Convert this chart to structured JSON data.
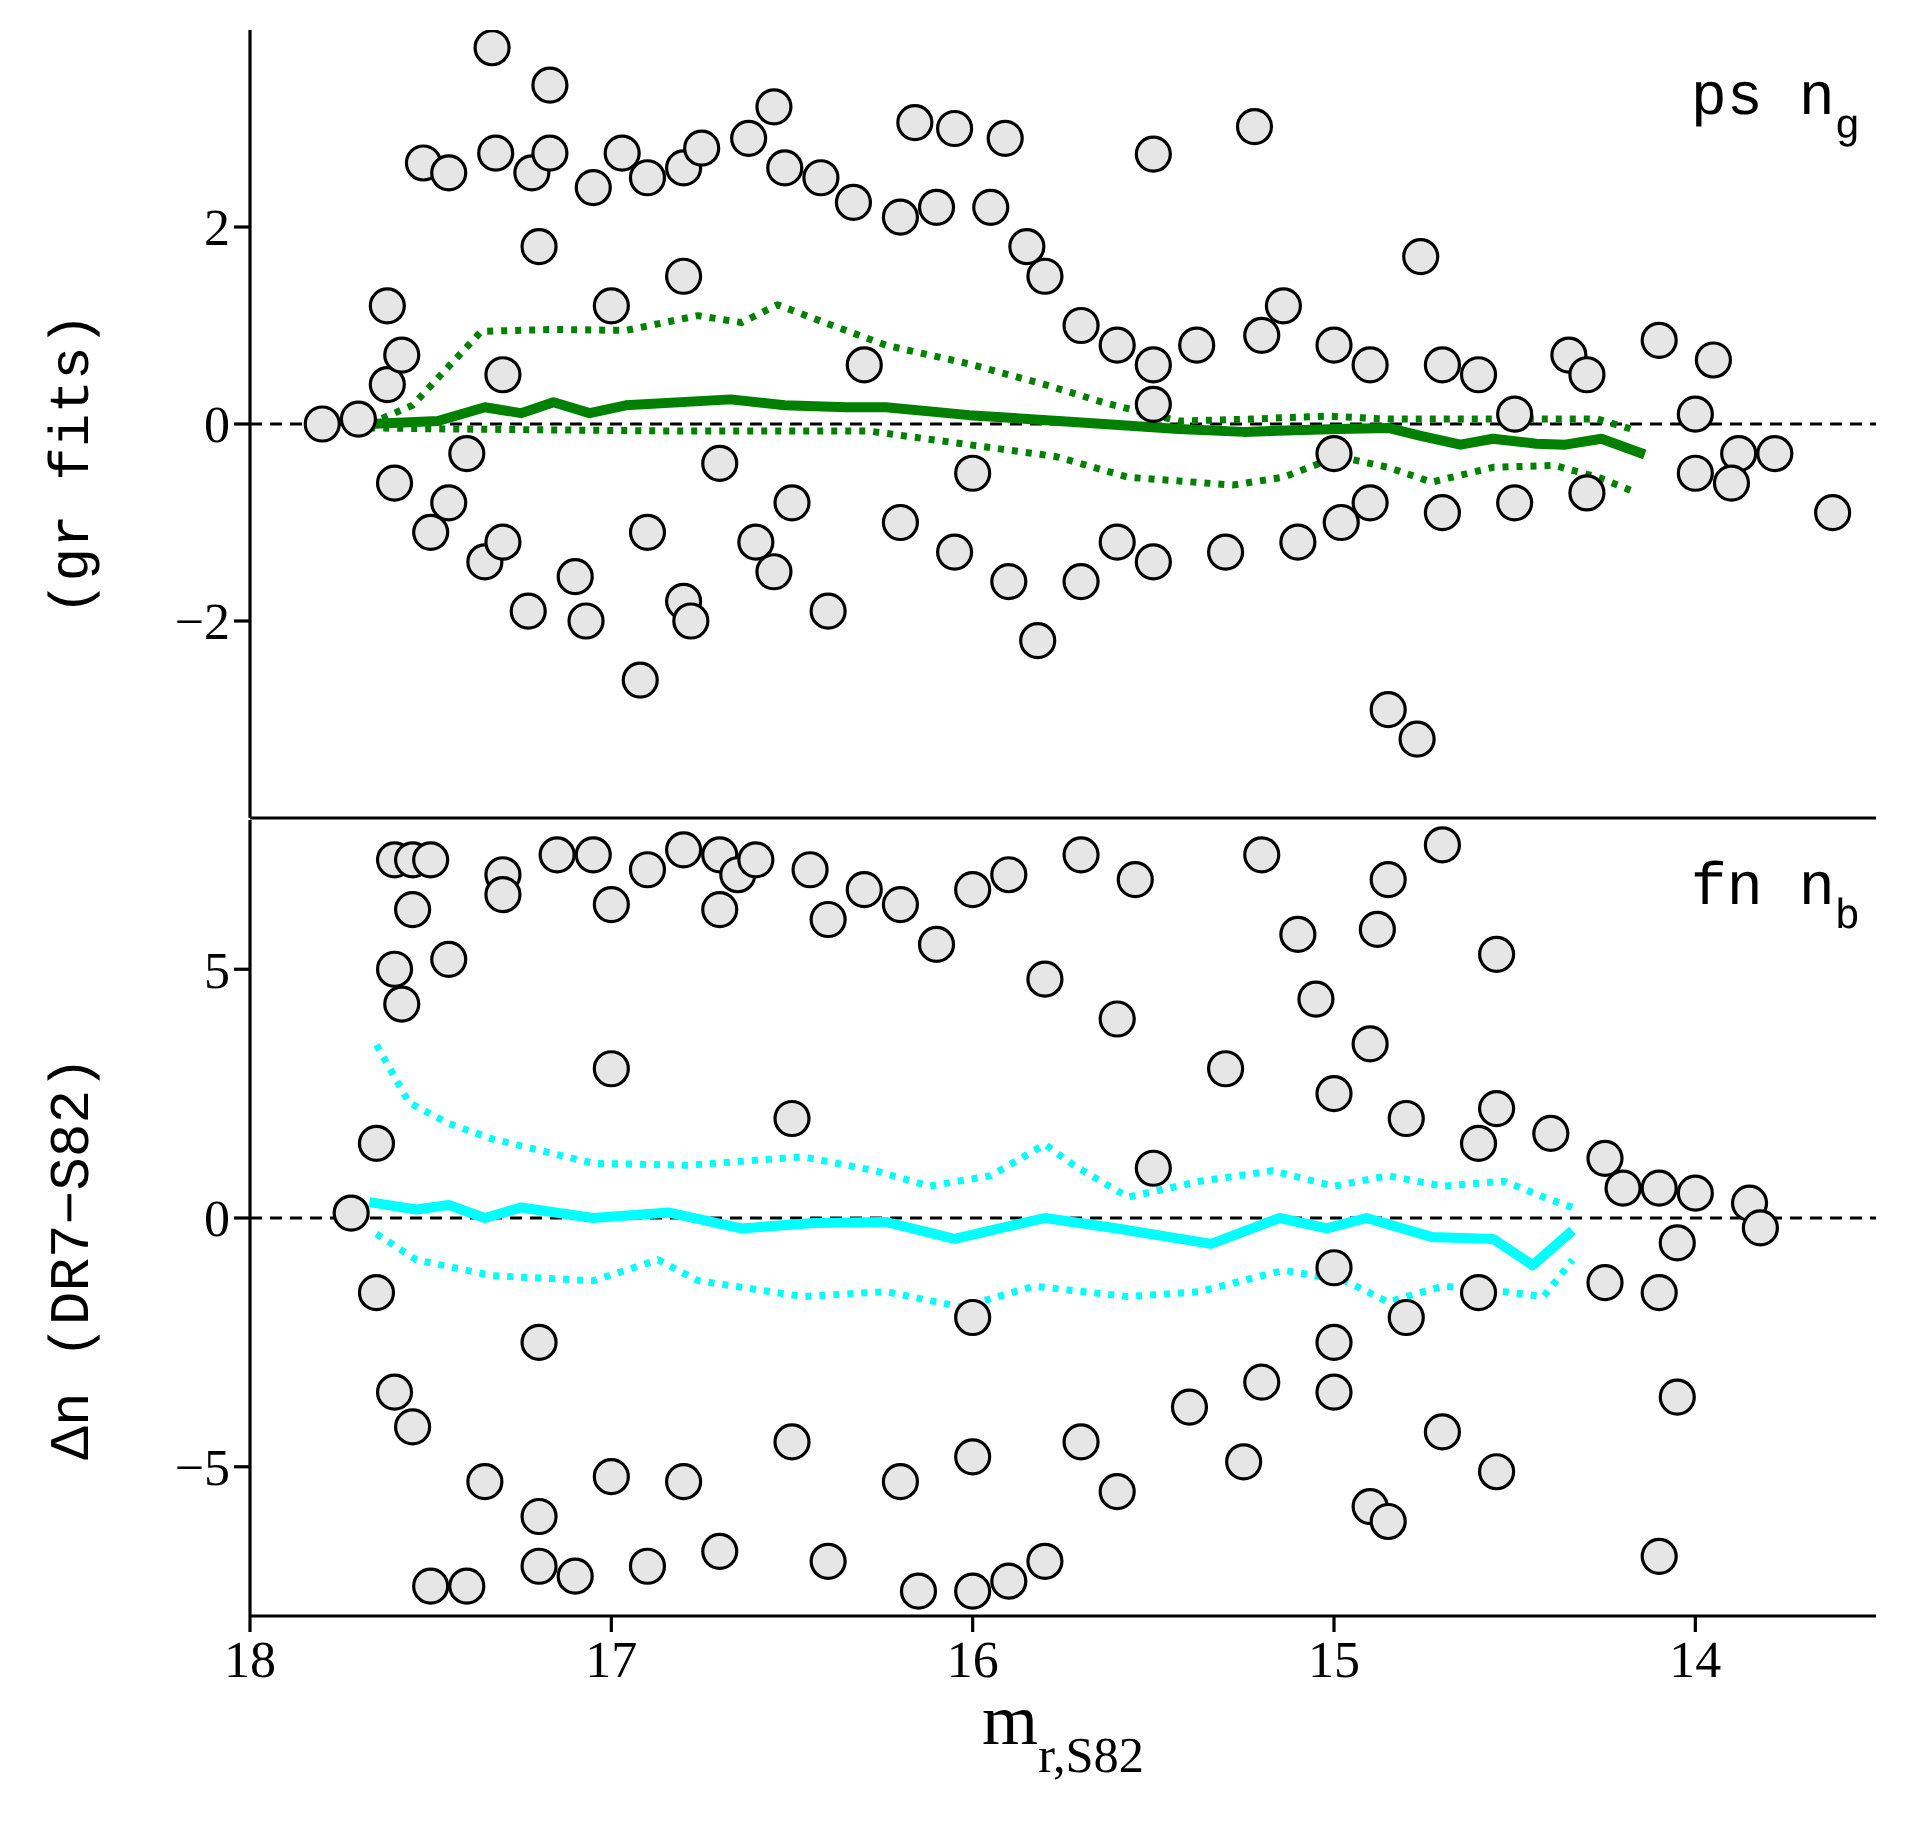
{
  "chart_data": [
    {
      "type": "scatter",
      "ylabel": "(gr fits)",
      "annotations": [
        "ps n$_{g}$"
      ],
      "xlim": [
        18,
        13.5
      ],
      "xticks": [
        18,
        17,
        16,
        15,
        14
      ],
      "ylim": [
        -4,
        4
      ],
      "yticks": [
        -2,
        0,
        2
      ],
      "tick_labels": "y",
      "ref_lines": [
        {
          "axis": "y",
          "value": 0,
          "color": "#000000",
          "line_style": "dashed"
        }
      ],
      "series": [
        {
          "marker": "circle",
          "color": "#e6e6e6",
          "x": [
            17.52,
            17.45,
            17.33,
            17.32,
            17.22,
            17.17,
            17.17,
            17.05,
            16.97,
            16.9,
            16.8,
            16.75,
            16.62,
            16.55,
            16.52,
            16.42,
            16.33,
            16.2,
            16.16,
            16.1,
            16.05,
            15.95,
            15.91,
            15.85,
            15.8,
            15.7,
            15.6,
            15.5,
            15.5,
            15.38,
            15.22,
            15.2,
            15.14,
            15.0,
            14.9,
            14.76,
            14.7,
            14.6,
            14.35,
            14.3,
            14.1,
            13.95,
            14.0,
            13.88,
            13.78,
            13.62,
            17.8,
            17.7,
            17.62,
            17.62,
            17.58,
            17.6,
            17.5,
            17.45,
            17.35,
            17.3,
            17.23,
            17.1,
            17.07,
            16.9,
            16.92,
            16.8,
            16.78,
            16.6,
            16.55,
            16.4,
            16.2,
            16.05,
            15.9,
            15.82,
            15.7,
            15.6,
            15.5,
            15.3,
            15.1,
            14.98,
            14.9,
            14.85,
            14.77,
            14.7,
            14.5,
            14.3,
            14.0,
            13.9,
            17.3,
            17.0,
            16.7,
            16.3,
            16.0,
            15.5,
            15.0,
            14.5,
            17.2,
            16.8,
            16.5,
            17.4
          ],
          "values": [
            2.65,
            2.55,
            3.82,
            2.75,
            2.55,
            3.44,
            2.75,
            2.4,
            2.75,
            2.5,
            2.6,
            2.8,
            2.9,
            3.22,
            2.6,
            2.5,
            2.25,
            2.1,
            3.06,
            2.2,
            3.0,
            2.2,
            2.9,
            1.8,
            1.5,
            1.0,
            0.8,
            2.74,
            0.6,
            0.8,
            3.02,
            0.9,
            1.2,
            0.8,
            0.6,
            1.7,
            0.6,
            0.5,
            0.7,
            0.5,
            0.85,
            0.65,
            0.1,
            -0.3,
            -0.3,
            -0.9,
            0.0,
            0.05,
            0.4,
            1.2,
            0.7,
            -0.6,
            -1.1,
            -0.8,
            -1.4,
            -1.2,
            -1.9,
            -1.55,
            -2.0,
            -1.1,
            -2.6,
            -1.8,
            -2.0,
            -1.2,
            -1.5,
            -1.9,
            -1.0,
            -1.3,
            -1.6,
            -2.2,
            -1.6,
            -1.2,
            -1.4,
            -1.3,
            -1.2,
            -1.0,
            -0.8,
            -2.9,
            -3.2,
            -0.9,
            -0.8,
            -0.7,
            -0.5,
            -0.6,
            0.5,
            1.2,
            -0.4,
            0.6,
            -0.5,
            0.2,
            -0.3,
            0.1,
            1.8,
            1.5,
            -0.8,
            -0.3
          ]
        },
        {
          "type": "line",
          "color": "#008000",
          "line_style": "solid",
          "x": [
            17.67,
            17.48,
            17.35,
            17.25,
            17.16,
            17.06,
            16.96,
            16.67,
            16.52,
            16.35,
            16.24,
            16.01,
            15.72,
            15.43,
            15.25,
            14.99,
            14.85,
            14.76,
            14.65,
            14.56,
            14.44,
            14.36,
            14.26,
            14.14
          ],
          "values": [
            0.0,
            0.03,
            0.17,
            0.11,
            0.22,
            0.11,
            0.19,
            0.25,
            0.19,
            0.17,
            0.17,
            0.09,
            0.02,
            -0.05,
            -0.08,
            -0.05,
            -0.04,
            -0.12,
            -0.21,
            -0.15,
            -0.2,
            -0.21,
            -0.15,
            -0.31
          ]
        },
        {
          "type": "line",
          "color": "#008000",
          "line_style": "dotted",
          "x": [
            17.67,
            17.55,
            17.36,
            17.16,
            16.96,
            16.76,
            16.64,
            16.54,
            16.41,
            16.24,
            16.01,
            15.8,
            15.63,
            15.43,
            15.23,
            15.02,
            14.85,
            14.56,
            14.27,
            14.16
          ],
          "values": [
            0.0,
            0.19,
            0.94,
            0.96,
            0.95,
            1.1,
            1.03,
            1.21,
            1.03,
            0.8,
            0.61,
            0.4,
            0.21,
            0.03,
            0.05,
            0.08,
            0.05,
            0.05,
            0.05,
            -0.07
          ]
        },
        {
          "type": "line",
          "color": "#008000",
          "line_style": "dotted",
          "x": [
            17.67,
            17.45,
            16.87,
            16.29,
            16.01,
            15.77,
            15.57,
            15.28,
            15.14,
            14.99,
            14.85,
            14.73,
            14.56,
            14.39,
            14.27,
            14.16
          ],
          "values": [
            -0.04,
            -0.05,
            -0.07,
            -0.07,
            -0.21,
            -0.33,
            -0.54,
            -0.62,
            -0.54,
            -0.33,
            -0.44,
            -0.59,
            -0.44,
            -0.42,
            -0.54,
            -0.7
          ]
        }
      ]
    },
    {
      "type": "scatter",
      "xlabel": "m$_{r,S82}$",
      "ylabel": "Δn (DR7−S82)",
      "annotations": [
        "fn n$_{b}$"
      ],
      "xlim": [
        18,
        13.5
      ],
      "xticks": [
        18,
        17,
        16,
        15,
        14
      ],
      "ylim": [
        -8,
        8
      ],
      "yticks": [
        -5,
        0,
        5
      ],
      "ref_lines": [
        {
          "axis": "y",
          "value": 0,
          "color": "#000000",
          "line_style": "dashed"
        }
      ],
      "series": [
        {
          "marker": "circle",
          "color": "#e6e6e6",
          "x": [
            17.6,
            17.55,
            17.5,
            17.3,
            17.15,
            17.05,
            16.9,
            16.8,
            16.7,
            16.65,
            16.6,
            16.45,
            16.3,
            16.2,
            16.0,
            15.9,
            15.7,
            15.55,
            15.2,
            14.85,
            14.7,
            15.1,
            14.88,
            14.55,
            15.05,
            14.9,
            14.55,
            14.4,
            14.25,
            14.1,
            14.0,
            13.85,
            13.82,
            14.05,
            14.1,
            14.05,
            14.1,
            14.55,
            14.7,
            14.9,
            14.85,
            15.0,
            15.25,
            15.6,
            15.8,
            15.9,
            16.0,
            16.15,
            16.4,
            16.7,
            16.9,
            17.1,
            17.2,
            17.4,
            17.5,
            17.55,
            17.6,
            17.65,
            17.72,
            17.65,
            17.58,
            17.6,
            17.55,
            17.45,
            17.35,
            17.2,
            17.0,
            16.8,
            16.5,
            16.2,
            16.0,
            15.7,
            15.4,
            15.2,
            15.0,
            14.8,
            14.6,
            14.25,
            14.2,
            14.6,
            14.8,
            15.0,
            15.3,
            15.6,
            15.8,
            16.1,
            16.4,
            16.7,
            17.0,
            17.3,
            17.0,
            16.5,
            16.0,
            17.2,
            15.5,
            15.0
          ],
          "values": [
            7.2,
            7.2,
            7.2,
            6.9,
            7.3,
            7.3,
            7.0,
            7.4,
            7.3,
            6.9,
            7.2,
            7.0,
            6.6,
            6.3,
            6.6,
            6.9,
            7.3,
            6.8,
            7.3,
            6.8,
            7.5,
            5.7,
            5.8,
            5.3,
            4.4,
            3.5,
            2.2,
            1.7,
            1.2,
            0.6,
            0.5,
            0.3,
            -0.2,
            -0.5,
            -1.5,
            -3.6,
            -6.8,
            -5.1,
            -4.3,
            -5.8,
            -6.1,
            -3.5,
            -4.9,
            -5.5,
            -6.9,
            -7.3,
            -7.5,
            -7.5,
            -6.9,
            -6.7,
            -7.0,
            -7.2,
            -7.0,
            -7.4,
            -7.4,
            -4.2,
            -3.5,
            -1.5,
            0.1,
            1.5,
            4.3,
            5.0,
            6.2,
            5.2,
            -5.3,
            -6.0,
            -5.2,
            -5.3,
            -4.5,
            -5.3,
            -4.8,
            -4.5,
            -3.8,
            -3.3,
            -2.5,
            -2.0,
            -1.5,
            -1.3,
            0.6,
            1.5,
            2.0,
            2.5,
            3.0,
            4.0,
            4.8,
            5.5,
            6.0,
            6.2,
            6.3,
            6.5,
            3.0,
            2.0,
            -2.0,
            -2.5,
            1.0,
            -1.0
          ]
        },
        {
          "type": "line",
          "color": "#00ffff",
          "line_style": "solid",
          "x": [
            17.67,
            17.54,
            17.45,
            17.35,
            17.25,
            17.05,
            16.84,
            16.64,
            16.44,
            16.24,
            16.05,
            15.8,
            15.6,
            15.34,
            15.15,
            15.02,
            14.91,
            14.73,
            14.56,
            14.45,
            14.34
          ],
          "values": [
            0.32,
            0.17,
            0.26,
            0.0,
            0.21,
            0.0,
            0.11,
            -0.21,
            -0.1,
            -0.08,
            -0.42,
            0.0,
            -0.21,
            -0.52,
            0.0,
            -0.21,
            0.0,
            -0.38,
            -0.42,
            -0.95,
            -0.25
          ]
        },
        {
          "type": "line",
          "color": "#00ffff",
          "line_style": "dotted",
          "x": [
            17.65,
            17.56,
            17.45,
            17.33,
            17.05,
            16.79,
            16.47,
            16.27,
            16.12,
            15.95,
            15.8,
            15.72,
            15.57,
            15.37,
            15.17,
            15.0,
            14.85,
            14.7,
            14.53,
            14.42,
            14.34
          ],
          "values": [
            3.48,
            2.32,
            1.9,
            1.59,
            1.1,
            1.06,
            1.23,
            0.95,
            0.64,
            0.85,
            1.48,
            1.06,
            0.42,
            0.74,
            0.95,
            0.64,
            0.85,
            0.64,
            0.74,
            0.42,
            0.21
          ]
        },
        {
          "type": "line",
          "color": "#00ffff",
          "line_style": "dotted",
          "x": [
            17.65,
            17.54,
            17.33,
            17.05,
            16.87,
            16.76,
            16.47,
            16.24,
            16.03,
            15.83,
            15.57,
            15.37,
            15.14,
            14.97,
            14.85,
            14.7,
            14.53,
            14.42,
            14.34
          ],
          "values": [
            -0.32,
            -0.84,
            -1.16,
            -1.26,
            -0.84,
            -1.26,
            -1.58,
            -1.48,
            -1.79,
            -1.37,
            -1.58,
            -1.48,
            -1.05,
            -1.26,
            -1.69,
            -1.37,
            -1.48,
            -1.58,
            -0.84
          ]
        }
      ]
    }
  ]
}
